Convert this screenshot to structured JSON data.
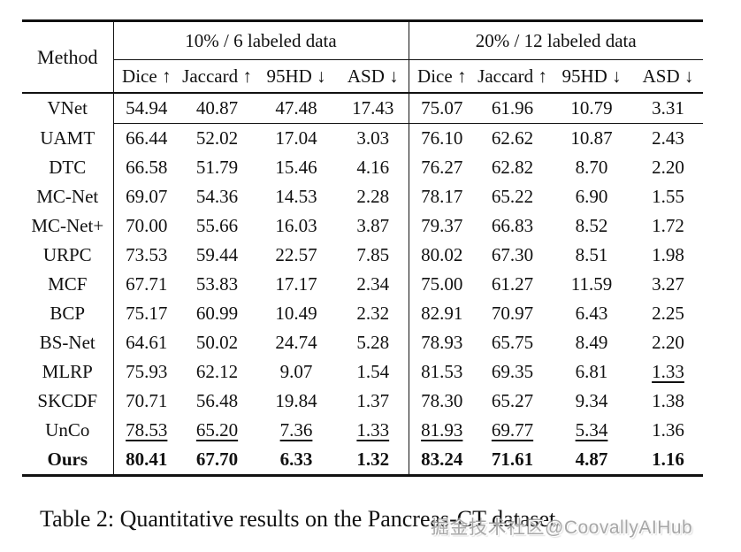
{
  "colors": {
    "text": "#111111",
    "rule": "#111111",
    "watermark_gray": "#919191",
    "background": "#ffffff"
  },
  "table": {
    "method_header": "Method",
    "groups": [
      {
        "label": "10% / 6 labeled data",
        "columns": [
          "Dice ↑",
          "Jaccard ↑",
          "95HD ↓",
          "ASD ↓"
        ]
      },
      {
        "label": "20% / 12 labeled data",
        "columns": [
          "Dice ↑",
          "Jaccard ↑",
          "95HD ↓",
          "ASD ↓"
        ]
      }
    ],
    "rows": [
      {
        "method": "VNet",
        "values": [
          "54.94",
          "40.87",
          "47.48",
          "17.43",
          "75.07",
          "61.96",
          "10.79",
          "3.31"
        ],
        "underline": [],
        "bold": false,
        "separator_below": true
      },
      {
        "method": "UAMT",
        "values": [
          "66.44",
          "52.02",
          "17.04",
          "3.03",
          "76.10",
          "62.62",
          "10.87",
          "2.43"
        ],
        "underline": [],
        "bold": false,
        "separator_below": false
      },
      {
        "method": "DTC",
        "values": [
          "66.58",
          "51.79",
          "15.46",
          "4.16",
          "76.27",
          "62.82",
          "8.70",
          "2.20"
        ],
        "underline": [],
        "bold": false,
        "separator_below": false
      },
      {
        "method": "MC-Net",
        "values": [
          "69.07",
          "54.36",
          "14.53",
          "2.28",
          "78.17",
          "65.22",
          "6.90",
          "1.55"
        ],
        "underline": [],
        "bold": false,
        "separator_below": false
      },
      {
        "method": "MC-Net+",
        "values": [
          "70.00",
          "55.66",
          "16.03",
          "3.87",
          "79.37",
          "66.83",
          "8.52",
          "1.72"
        ],
        "underline": [],
        "bold": false,
        "separator_below": false
      },
      {
        "method": "URPC",
        "values": [
          "73.53",
          "59.44",
          "22.57",
          "7.85",
          "80.02",
          "67.30",
          "8.51",
          "1.98"
        ],
        "underline": [],
        "bold": false,
        "separator_below": false
      },
      {
        "method": "MCF",
        "values": [
          "67.71",
          "53.83",
          "17.17",
          "2.34",
          "75.00",
          "61.27",
          "11.59",
          "3.27"
        ],
        "underline": [],
        "bold": false,
        "separator_below": false
      },
      {
        "method": "BCP",
        "values": [
          "75.17",
          "60.99",
          "10.49",
          "2.32",
          "82.91",
          "70.97",
          "6.43",
          "2.25"
        ],
        "underline": [],
        "bold": false,
        "separator_below": false
      },
      {
        "method": "BS-Net",
        "values": [
          "64.61",
          "50.02",
          "24.74",
          "5.28",
          "78.93",
          "65.75",
          "8.49",
          "2.20"
        ],
        "underline": [],
        "bold": false,
        "separator_below": false
      },
      {
        "method": "MLRP",
        "values": [
          "75.93",
          "62.12",
          "9.07",
          "1.54",
          "81.53",
          "69.35",
          "6.81",
          "1.33"
        ],
        "underline": [
          7
        ],
        "bold": false,
        "separator_below": false
      },
      {
        "method": "SKCDF",
        "values": [
          "70.71",
          "56.48",
          "19.84",
          "1.37",
          "78.30",
          "65.27",
          "9.34",
          "1.38"
        ],
        "underline": [],
        "bold": false,
        "separator_below": false
      },
      {
        "method": "UnCo",
        "values": [
          "78.53",
          "65.20",
          "7.36",
          "1.33",
          "81.93",
          "69.77",
          "5.34",
          "1.36"
        ],
        "underline": [
          0,
          1,
          2,
          3,
          4,
          5,
          6
        ],
        "bold": false,
        "separator_below": false
      },
      {
        "method": "Ours",
        "values": [
          "80.41",
          "67.70",
          "6.33",
          "1.32",
          "83.24",
          "71.61",
          "4.87",
          "1.16"
        ],
        "underline": [],
        "bold": true,
        "separator_below": false
      }
    ]
  },
  "caption": "Table 2: Quantitative results on the Pancreas-CT dataset.",
  "watermark": "掘金技术社区@CoovallyAIHub",
  "chart_data": {
    "type": "table",
    "title": "Table 2: Quantitative results on the Pancreas-CT dataset.",
    "column_groups": [
      "10% / 6 labeled data",
      "20% / 12 labeled data"
    ],
    "columns": [
      "Method",
      "Dice",
      "Jaccard",
      "95HD",
      "ASD",
      "Dice",
      "Jaccard",
      "95HD",
      "ASD"
    ],
    "rows": [
      [
        "VNet",
        54.94,
        40.87,
        47.48,
        17.43,
        75.07,
        61.96,
        10.79,
        3.31
      ],
      [
        "UAMT",
        66.44,
        52.02,
        17.04,
        3.03,
        76.1,
        62.62,
        10.87,
        2.43
      ],
      [
        "DTC",
        66.58,
        51.79,
        15.46,
        4.16,
        76.27,
        62.82,
        8.7,
        2.2
      ],
      [
        "MC-Net",
        69.07,
        54.36,
        14.53,
        2.28,
        78.17,
        65.22,
        6.9,
        1.55
      ],
      [
        "MC-Net+",
        70.0,
        55.66,
        16.03,
        3.87,
        79.37,
        66.83,
        8.52,
        1.72
      ],
      [
        "URPC",
        73.53,
        59.44,
        22.57,
        7.85,
        80.02,
        67.3,
        8.51,
        1.98
      ],
      [
        "MCF",
        67.71,
        53.83,
        17.17,
        2.34,
        75.0,
        61.27,
        11.59,
        3.27
      ],
      [
        "BCP",
        75.17,
        60.99,
        10.49,
        2.32,
        82.91,
        70.97,
        6.43,
        2.25
      ],
      [
        "BS-Net",
        64.61,
        50.02,
        24.74,
        5.28,
        78.93,
        65.75,
        8.49,
        2.2
      ],
      [
        "MLRP",
        75.93,
        62.12,
        9.07,
        1.54,
        81.53,
        69.35,
        6.81,
        1.33
      ],
      [
        "SKCDF",
        70.71,
        56.48,
        19.84,
        1.37,
        78.3,
        65.27,
        9.34,
        1.38
      ],
      [
        "UnCo",
        78.53,
        65.2,
        7.36,
        1.33,
        81.93,
        69.77,
        5.34,
        1.36
      ],
      [
        "Ours",
        80.41,
        67.7,
        6.33,
        1.32,
        83.24,
        71.61,
        4.87,
        1.16
      ]
    ]
  }
}
